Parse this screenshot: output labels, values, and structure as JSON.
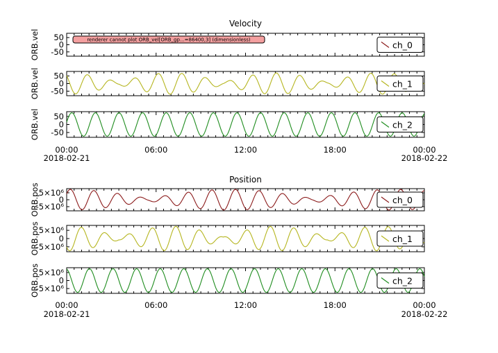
{
  "chart_data": [
    {
      "type": "line",
      "title": "Velocity",
      "ylabel": "ORB.vel",
      "x_range": [
        "2018-02-21 00:00",
        "2018-02-22 00:00"
      ],
      "x_ticks": [
        {
          "time": "00:00",
          "date": "2018-02-21"
        },
        {
          "time": "06:00",
          "date": ""
        },
        {
          "time": "12:00",
          "date": ""
        },
        {
          "time": "18:00",
          "date": ""
        },
        {
          "time": "00:00",
          "date": "2018-02-22"
        }
      ],
      "panels": [
        {
          "series": {
            "name": "ch_0",
            "color": "#8b1a1a",
            "plotted": false
          },
          "yticks": [
            "50",
            "0",
            "-50"
          ],
          "ylim": [
            -80,
            80
          ],
          "error": "renderer cannot plot ORB_vel[ORB_gp...=86400,3] (dimensionless)"
        },
        {
          "series": {
            "name": "ch_1",
            "color": "#b5b51e",
            "plotted": true,
            "period_minutes": 95,
            "amplitude": 70,
            "envelope": "beating",
            "beat_period_hours": 7,
            "phase": 2.3
          },
          "yticks": [
            "50",
            "0",
            "-50"
          ],
          "ylim": [
            -80,
            80
          ]
        },
        {
          "series": {
            "name": "ch_2",
            "color": "#1e8c1e",
            "plotted": true,
            "period_minutes": 95,
            "amplitude": 73,
            "envelope": "constant",
            "phase": 0.2
          },
          "yticks": [
            "50",
            "0",
            "-50"
          ],
          "ylim": [
            -80,
            80
          ]
        }
      ]
    },
    {
      "type": "line",
      "title": "Position",
      "ylabel": "ORB.pos",
      "x_range": [
        "2018-02-21 00:00",
        "2018-02-22 00:00"
      ],
      "x_ticks": [
        {
          "time": "00:00",
          "date": "2018-02-21"
        },
        {
          "time": "06:00",
          "date": ""
        },
        {
          "time": "12:00",
          "date": ""
        },
        {
          "time": "18:00",
          "date": ""
        },
        {
          "time": "00:00",
          "date": "2018-02-22"
        }
      ],
      "panels": [
        {
          "series": {
            "name": "ch_0",
            "color": "#8b1a1a",
            "plotted": true,
            "period_minutes": 95,
            "amplitude": 7000000,
            "envelope": "beating",
            "beat_period_hours": 11,
            "phase": 0.6
          },
          "yticks": [
            "5×10⁶",
            "0",
            "-5×10⁶"
          ],
          "ylim": [
            -7500000,
            7500000
          ]
        },
        {
          "series": {
            "name": "ch_1",
            "color": "#b5b51e",
            "plotted": true,
            "period_minutes": 95,
            "amplitude": 7000000,
            "envelope": "beating",
            "beat_period_hours": 7,
            "phase": 3.9
          },
          "yticks": [
            "5×10⁶",
            "0",
            "-5×10⁶"
          ],
          "ylim": [
            -7500000,
            7500000
          ]
        },
        {
          "series": {
            "name": "ch_2",
            "color": "#1e8c1e",
            "plotted": true,
            "period_minutes": 95,
            "amplitude": 6900000,
            "envelope": "constant",
            "phase": 1.8
          },
          "yticks": [
            "5×10⁶",
            "0",
            "-5×10⁶"
          ],
          "ylim": [
            -7500000,
            7500000
          ]
        }
      ]
    }
  ]
}
